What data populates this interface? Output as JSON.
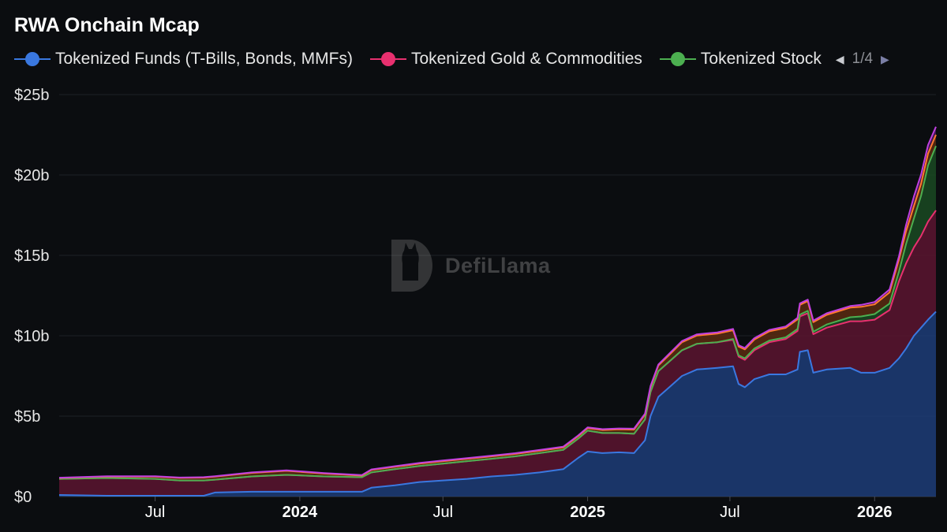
{
  "chart_data": {
    "type": "area",
    "stacked": true,
    "title": "RWA Onchain Mcap",
    "legend": {
      "placement": "top-left",
      "page": "1/4",
      "visible_entries": [
        {
          "name": "Tokenized Funds (T-Bills, Bonds, MMFs)",
          "color": "#3a78e0"
        },
        {
          "name": "Tokenized Gold & Commodities",
          "color": "#e8306f"
        },
        {
          "name": "Tokenized Stock",
          "color": "#4caf50"
        }
      ]
    },
    "x_ticks": [
      {
        "date": "2023-07-01",
        "label": "Jul",
        "bold": false
      },
      {
        "date": "2024-01-01",
        "label": "2024",
        "bold": true
      },
      {
        "date": "2024-07-01",
        "label": "Jul",
        "bold": false
      },
      {
        "date": "2025-01-01",
        "label": "2025",
        "bold": true
      },
      {
        "date": "2025-07-01",
        "label": "Jul",
        "bold": false
      },
      {
        "date": "2026-01-01",
        "label": "2026",
        "bold": true
      }
    ],
    "xlim": [
      "2023-03-01",
      "2026-03-20"
    ],
    "y_ticks": [
      {
        "value": 0,
        "label": "$0"
      },
      {
        "value": 5,
        "label": "$5b"
      },
      {
        "value": 10,
        "label": "$10b"
      },
      {
        "value": 15,
        "label": "$15b"
      },
      {
        "value": 20,
        "label": "$20b"
      },
      {
        "value": 25,
        "label": "$25b"
      }
    ],
    "ylim": [
      0,
      25
    ],
    "y_unit": "billion USD",
    "grid": true,
    "series": [
      {
        "name": "Tokenized Funds (T-Bills, Bonds, MMFs)",
        "color": "#3a78e0",
        "fill": "#1d3d78",
        "points": [
          [
            "2023-03-01",
            0.1
          ],
          [
            "2023-05-01",
            0.05
          ],
          [
            "2023-07-01",
            0.05
          ],
          [
            "2023-09-01",
            0.05
          ],
          [
            "2023-09-15",
            0.25
          ],
          [
            "2023-11-01",
            0.3
          ],
          [
            "2023-12-15",
            0.3
          ],
          [
            "2024-02-01",
            0.3
          ],
          [
            "2024-03-20",
            0.3
          ],
          [
            "2024-04-01",
            0.55
          ],
          [
            "2024-05-01",
            0.7
          ],
          [
            "2024-06-01",
            0.9
          ],
          [
            "2024-07-01",
            1.0
          ],
          [
            "2024-08-01",
            1.1
          ],
          [
            "2024-09-01",
            1.25
          ],
          [
            "2024-10-01",
            1.35
          ],
          [
            "2024-11-01",
            1.5
          ],
          [
            "2024-12-01",
            1.7
          ],
          [
            "2024-12-20",
            2.4
          ],
          [
            "2025-01-01",
            2.8
          ],
          [
            "2025-01-20",
            2.7
          ],
          [
            "2025-02-10",
            2.75
          ],
          [
            "2025-03-01",
            2.7
          ],
          [
            "2025-03-15",
            3.5
          ],
          [
            "2025-03-22",
            5.0
          ],
          [
            "2025-04-01",
            6.2
          ],
          [
            "2025-04-15",
            6.8
          ],
          [
            "2025-05-01",
            7.5
          ],
          [
            "2025-05-20",
            7.9
          ],
          [
            "2025-06-15",
            8.0
          ],
          [
            "2025-07-05",
            8.1
          ],
          [
            "2025-07-12",
            7.0
          ],
          [
            "2025-07-20",
            6.8
          ],
          [
            "2025-08-01",
            7.3
          ],
          [
            "2025-08-20",
            7.6
          ],
          [
            "2025-09-10",
            7.6
          ],
          [
            "2025-09-25",
            7.9
          ],
          [
            "2025-09-28",
            9.0
          ],
          [
            "2025-10-08",
            9.1
          ],
          [
            "2025-10-15",
            7.7
          ],
          [
            "2025-11-01",
            7.9
          ],
          [
            "2025-12-01",
            8.0
          ],
          [
            "2025-12-15",
            7.7
          ],
          [
            "2026-01-01",
            7.7
          ],
          [
            "2026-01-20",
            8.0
          ],
          [
            "2026-02-01",
            8.6
          ],
          [
            "2026-02-10",
            9.2
          ],
          [
            "2026-02-20",
            10.0
          ],
          [
            "2026-03-01",
            10.5
          ],
          [
            "2026-03-10",
            11.0
          ],
          [
            "2026-03-20",
            11.5
          ]
        ]
      },
      {
        "name": "Tokenized Gold & Commodities",
        "color": "#e8306f",
        "fill": "#5c1530",
        "points": [
          [
            "2023-03-01",
            1.0
          ],
          [
            "2023-05-01",
            1.1
          ],
          [
            "2023-07-01",
            1.05
          ],
          [
            "2023-08-01",
            0.95
          ],
          [
            "2023-09-01",
            0.95
          ],
          [
            "2023-09-15",
            0.8
          ],
          [
            "2023-11-01",
            0.95
          ],
          [
            "2023-12-15",
            1.05
          ],
          [
            "2024-02-01",
            0.95
          ],
          [
            "2024-03-20",
            0.9
          ],
          [
            "2024-04-01",
            0.95
          ],
          [
            "2024-05-01",
            1.0
          ],
          [
            "2024-06-01",
            1.0
          ],
          [
            "2024-07-01",
            1.05
          ],
          [
            "2024-08-01",
            1.1
          ],
          [
            "2024-09-01",
            1.1
          ],
          [
            "2024-10-01",
            1.15
          ],
          [
            "2024-11-01",
            1.2
          ],
          [
            "2024-12-01",
            1.2
          ],
          [
            "2024-12-20",
            1.2
          ],
          [
            "2025-01-01",
            1.3
          ],
          [
            "2025-01-20",
            1.25
          ],
          [
            "2025-02-10",
            1.2
          ],
          [
            "2025-03-01",
            1.2
          ],
          [
            "2025-03-15",
            1.3
          ],
          [
            "2025-03-22",
            1.5
          ],
          [
            "2025-04-01",
            1.6
          ],
          [
            "2025-04-15",
            1.6
          ],
          [
            "2025-05-01",
            1.6
          ],
          [
            "2025-05-20",
            1.6
          ],
          [
            "2025-06-15",
            1.6
          ],
          [
            "2025-07-05",
            1.65
          ],
          [
            "2025-07-12",
            1.7
          ],
          [
            "2025-07-20",
            1.7
          ],
          [
            "2025-08-01",
            1.8
          ],
          [
            "2025-08-20",
            2.0
          ],
          [
            "2025-09-10",
            2.2
          ],
          [
            "2025-09-25",
            2.4
          ],
          [
            "2025-09-28",
            2.2
          ],
          [
            "2025-10-08",
            2.3
          ],
          [
            "2025-10-15",
            2.4
          ],
          [
            "2025-11-01",
            2.6
          ],
          [
            "2025-12-01",
            2.9
          ],
          [
            "2025-12-15",
            3.2
          ],
          [
            "2026-01-01",
            3.3
          ],
          [
            "2026-01-20",
            3.6
          ],
          [
            "2026-02-01",
            4.8
          ],
          [
            "2026-02-10",
            5.3
          ],
          [
            "2026-02-20",
            5.5
          ],
          [
            "2026-03-01",
            5.7
          ],
          [
            "2026-03-10",
            6.1
          ],
          [
            "2026-03-20",
            6.3
          ]
        ]
      },
      {
        "name": "Tokenized Stock",
        "color": "#4caf50",
        "fill": "#1a4a22",
        "points": [
          [
            "2023-03-01",
            0
          ],
          [
            "2025-06-15",
            0
          ],
          [
            "2025-07-05",
            0.05
          ],
          [
            "2025-07-12",
            0.08
          ],
          [
            "2025-07-20",
            0.1
          ],
          [
            "2025-08-01",
            0.1
          ],
          [
            "2025-08-20",
            0.1
          ],
          [
            "2025-09-10",
            0.1
          ],
          [
            "2025-09-25",
            0.12
          ],
          [
            "2025-09-28",
            0.12
          ],
          [
            "2025-10-08",
            0.15
          ],
          [
            "2025-10-15",
            0.15
          ],
          [
            "2025-11-01",
            0.2
          ],
          [
            "2025-12-01",
            0.25
          ],
          [
            "2025-12-15",
            0.3
          ],
          [
            "2026-01-01",
            0.35
          ],
          [
            "2026-01-20",
            0.4
          ],
          [
            "2026-02-01",
            0.6
          ],
          [
            "2026-02-10",
            1.2
          ],
          [
            "2026-02-20",
            1.8
          ],
          [
            "2026-03-01",
            2.5
          ],
          [
            "2026-03-10",
            3.5
          ],
          [
            "2026-03-20",
            4.0
          ]
        ]
      },
      {
        "name": "",
        "color": "#ff7a2f",
        "fill": "#5a2b10",
        "points": [
          [
            "2023-03-01",
            0.05
          ],
          [
            "2023-12-15",
            0.25
          ],
          [
            "2024-03-20",
            0.1
          ],
          [
            "2024-04-01",
            0.15
          ],
          [
            "2025-01-01",
            0.15
          ],
          [
            "2025-03-22",
            0.3
          ],
          [
            "2025-05-01",
            0.5
          ],
          [
            "2025-09-28",
            0.6
          ],
          [
            "2026-01-01",
            0.6
          ],
          [
            "2026-02-10",
            0.8
          ],
          [
            "2026-03-20",
            0.7
          ]
        ]
      },
      {
        "name": "",
        "color": "#c040e0",
        "fill": "#4a1a5a",
        "points": [
          [
            "2023-03-01",
            0.02
          ],
          [
            "2025-01-01",
            0.05
          ],
          [
            "2025-06-01",
            0.08
          ],
          [
            "2025-12-01",
            0.1
          ],
          [
            "2026-02-01",
            0.2
          ],
          [
            "2026-02-20",
            0.6
          ],
          [
            "2026-03-20",
            0.5
          ]
        ]
      }
    ]
  },
  "watermark": {
    "text": "DefiLlama"
  }
}
